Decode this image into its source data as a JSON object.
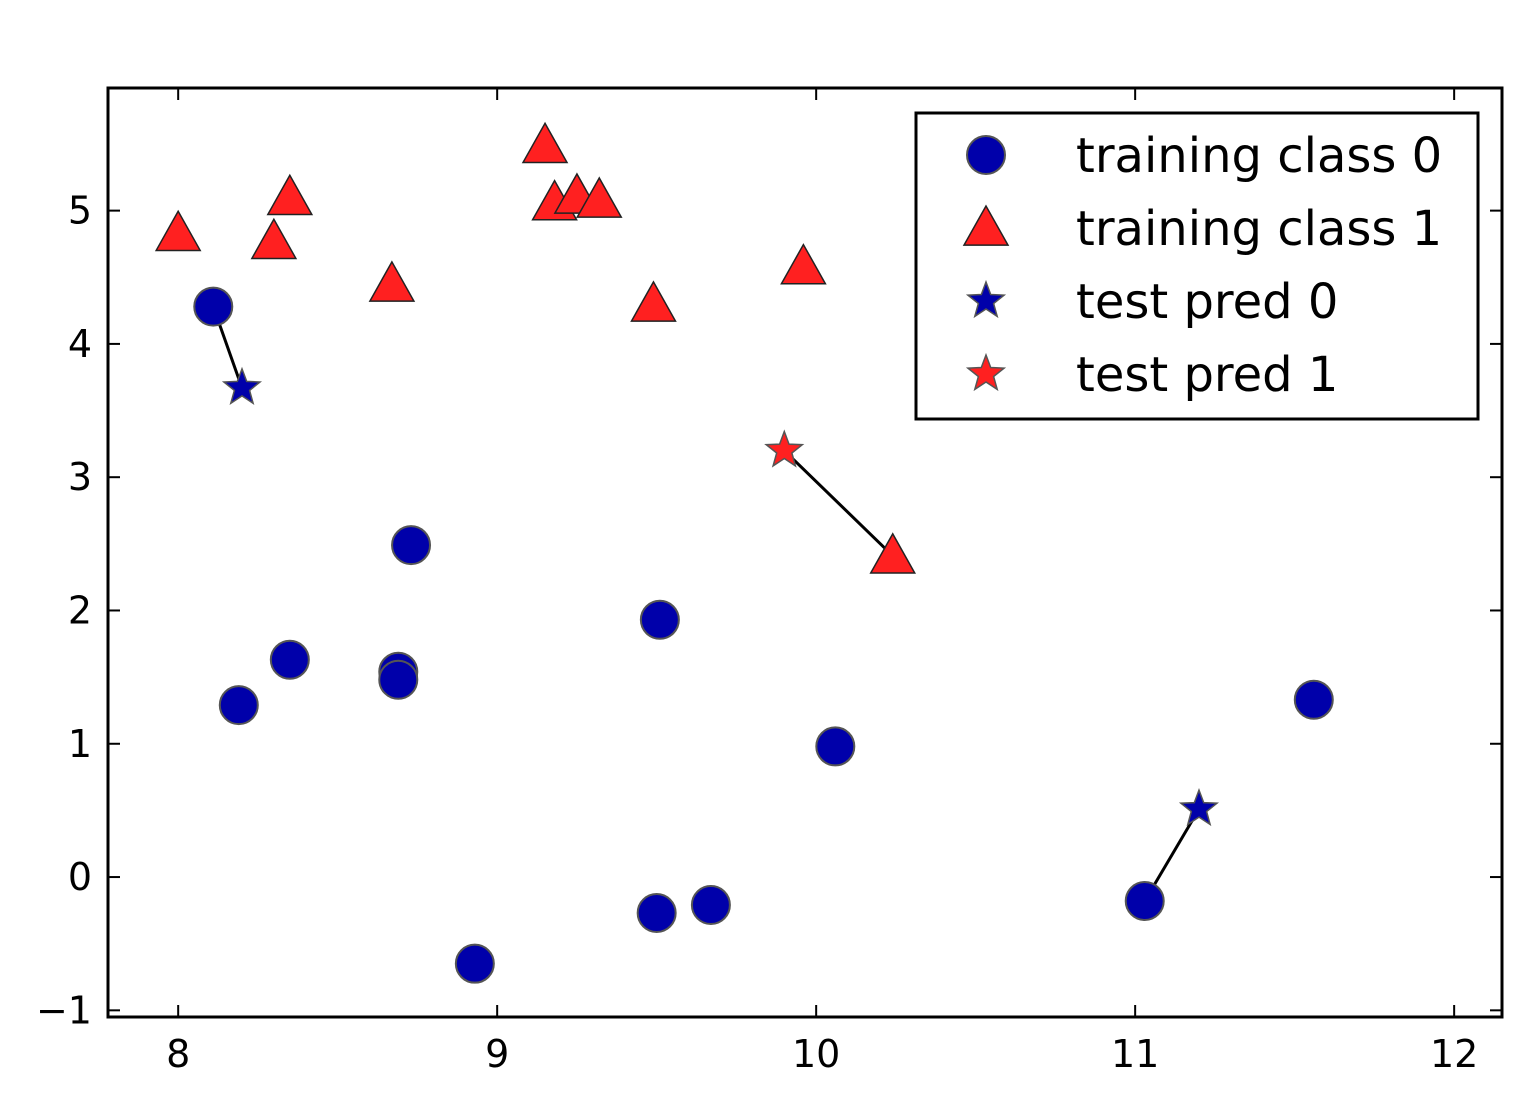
{
  "chart_data": {
    "type": "scatter",
    "title": "",
    "xlabel": "",
    "ylabel": "",
    "xlim": [
      7.78,
      12.15
    ],
    "ylim": [
      -1.05,
      5.92
    ],
    "x_ticks": [
      8,
      9,
      10,
      11,
      12
    ],
    "y_ticks": [
      -1,
      0,
      1,
      2,
      3,
      4,
      5
    ],
    "x_tick_labels": [
      "8",
      "9",
      "10",
      "11",
      "12"
    ],
    "y_tick_labels": [
      "−1",
      "0",
      "1",
      "2",
      "3",
      "4",
      "5"
    ],
    "grid": false,
    "legend_position": "top-right",
    "colors": {
      "class0": "#0000aa",
      "class1": "#ff2020",
      "edge": "#555555",
      "frame": "#000000",
      "line": "#000000"
    },
    "series": [
      {
        "name": "training class 0",
        "marker": "circle",
        "color": "#0000aa",
        "points": [
          [
            8.11,
            4.28
          ],
          [
            8.19,
            1.29
          ],
          [
            8.35,
            1.63
          ],
          [
            8.69,
            1.54
          ],
          [
            8.69,
            1.48
          ],
          [
            8.73,
            2.49
          ],
          [
            8.93,
            -0.65
          ],
          [
            9.51,
            1.93
          ],
          [
            9.5,
            -0.27
          ],
          [
            9.67,
            -0.21
          ],
          [
            10.06,
            0.98
          ],
          [
            11.03,
            -0.18
          ],
          [
            11.56,
            1.33
          ]
        ]
      },
      {
        "name": "training class 1",
        "marker": "triangle",
        "color": "#ff2020",
        "points": [
          [
            8.0,
            4.83
          ],
          [
            8.3,
            4.77
          ],
          [
            8.35,
            5.1
          ],
          [
            8.67,
            4.45
          ],
          [
            9.15,
            5.49
          ],
          [
            9.18,
            5.06
          ],
          [
            9.25,
            5.11
          ],
          [
            9.32,
            5.08
          ],
          [
            9.49,
            4.3
          ],
          [
            9.96,
            4.58
          ],
          [
            10.24,
            2.41
          ]
        ]
      },
      {
        "name": "test pred 0",
        "marker": "star",
        "color": "#0000aa",
        "points": [
          [
            8.2,
            3.67
          ],
          [
            11.2,
            0.51
          ]
        ]
      },
      {
        "name": "test pred 1",
        "marker": "star",
        "color": "#ff2020",
        "points": [
          [
            9.9,
            3.2
          ]
        ]
      }
    ],
    "neighbor_lines": [
      {
        "from": [
          8.2,
          3.67
        ],
        "to": [
          8.11,
          4.28
        ]
      },
      {
        "from": [
          11.2,
          0.51
        ],
        "to": [
          11.03,
          -0.18
        ]
      },
      {
        "from": [
          9.9,
          3.2
        ],
        "to": [
          10.24,
          2.41
        ]
      }
    ],
    "legend": [
      {
        "label": "training class 0",
        "marker": "circle",
        "color": "#0000aa"
      },
      {
        "label": "training class 1",
        "marker": "triangle",
        "color": "#ff2020"
      },
      {
        "label": "test pred 0",
        "marker": "star",
        "color": "#0000aa"
      },
      {
        "label": "test pred 1",
        "marker": "star",
        "color": "#ff2020"
      }
    ]
  }
}
